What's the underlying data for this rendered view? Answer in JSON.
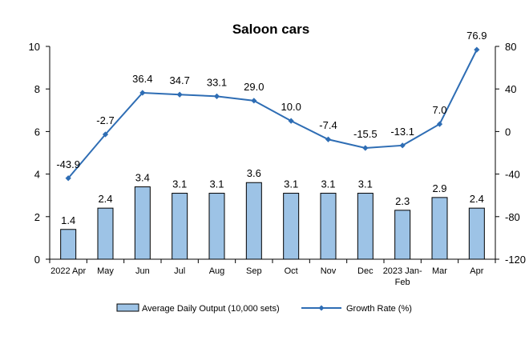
{
  "chart_data": {
    "type": "bar+line",
    "title": "Saloon cars",
    "categories": [
      "2022 Apr",
      "May",
      "Jun",
      "Jul",
      "Aug",
      "Sep",
      "Oct",
      "Nov",
      "Dec",
      "2023 Jan-\nFeb",
      "Mar",
      "Apr"
    ],
    "series": [
      {
        "name": "Average Daily Output (10,000 sets)",
        "type": "bar",
        "axis": "left",
        "values": [
          1.4,
          2.4,
          3.4,
          3.1,
          3.1,
          3.6,
          3.1,
          3.1,
          3.1,
          2.3,
          2.9,
          2.4
        ],
        "color": "#9DC3E6"
      },
      {
        "name": "Growth Rate (%)",
        "type": "line",
        "axis": "right",
        "values": [
          -43.9,
          -2.7,
          36.4,
          34.7,
          33.1,
          29.0,
          10.0,
          -7.4,
          -15.5,
          -13.1,
          7.0,
          76.9
        ],
        "color": "#2E6DB4"
      }
    ],
    "y_left": {
      "min": 0,
      "max": 10,
      "ticks": [
        0,
        2,
        4,
        6,
        8,
        10
      ]
    },
    "y_right": {
      "min": -120,
      "max": 80,
      "ticks": [
        -120,
        -80,
        -40,
        0,
        40,
        80
      ]
    },
    "legend_position": "bottom",
    "grid": false
  }
}
